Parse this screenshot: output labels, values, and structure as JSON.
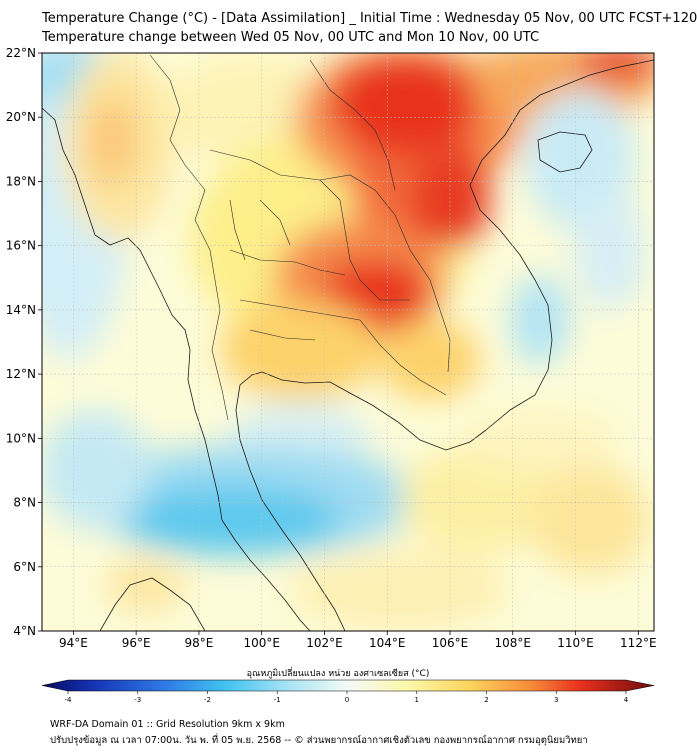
{
  "title_line1": "Temperature Change (°C) - [Data Assimilation] _ Initial Time : Wednesday 05 Nov, 00 UTC FCST+120",
  "title_line2": "Temperature change between Wed 05 Nov, 00 UTC and Mon 10 Nov, 00 UTC",
  "map": {
    "lon_range": [
      93,
      112.5
    ],
    "lat_range": [
      4,
      22
    ],
    "lon_ticks": [
      "94°E",
      "96°E",
      "98°E",
      "100°E",
      "102°E",
      "104°E",
      "106°E",
      "108°E",
      "110°E",
      "112°E"
    ],
    "lon_tick_values": [
      94,
      96,
      98,
      100,
      102,
      104,
      106,
      108,
      110,
      112
    ],
    "lat_ticks": [
      "4°N",
      "6°N",
      "8°N",
      "10°N",
      "12°N",
      "14°N",
      "16°N",
      "18°N",
      "20°N",
      "22°N"
    ],
    "lat_tick_values": [
      4,
      6,
      8,
      10,
      12,
      14,
      16,
      18,
      20,
      22
    ],
    "grid": true
  },
  "colorbar": {
    "label": "อุณหภูมิเปลี่ยนแปลง หน่วย องศาเซลเซียส (°C)",
    "min": -4,
    "max": 4,
    "ticks": [
      "-4",
      "-3",
      "-2",
      "-1",
      "0",
      "1",
      "2",
      "3",
      "4"
    ],
    "tick_values": [
      -4,
      -3,
      -2,
      -1,
      0,
      1,
      2,
      3,
      4
    ]
  },
  "footer_line1": "WRF-DA Domain 01 :: Grid Resolution 9km x 9km",
  "footer_line2": "ปรับปรุงข้อมูล ณ เวลา 07:00น. วัน พ. ที่ 05 พ.ย. 2568 -- © ส่วนพยากรณ์อากาศเชิงตัวเลข กองพยากรณ์อากาศ กรมอุตุนิยมวิทยา"
}
